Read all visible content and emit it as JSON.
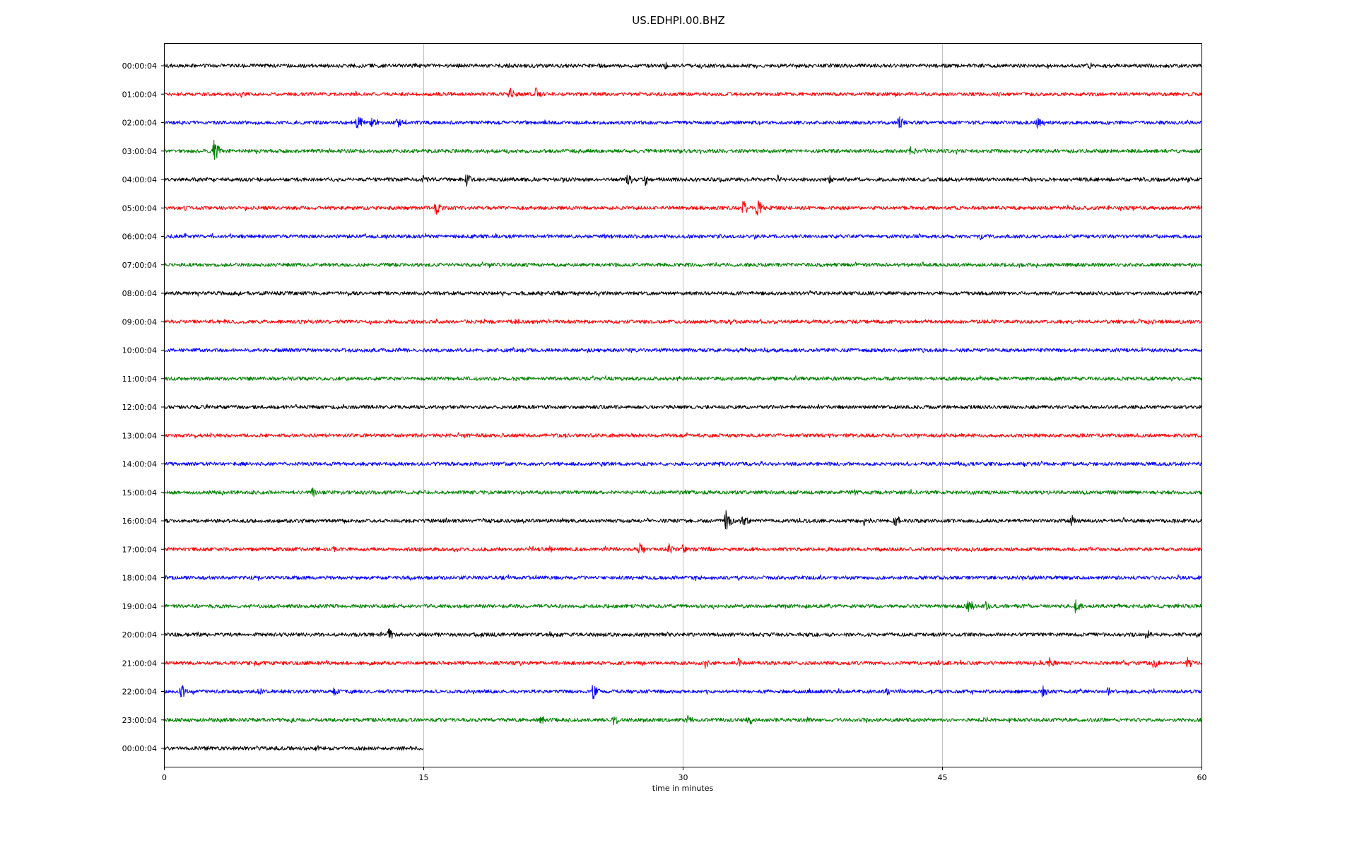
{
  "chart_data": {
    "type": "line",
    "title": "US.EDHPI.00.BHZ",
    "xlabel": "time in minutes",
    "ylabel": "",
    "xlim": [
      0,
      60
    ],
    "xticks": [
      0,
      15,
      30,
      45,
      60
    ],
    "grid": "vertical lines at x ticks",
    "line_colors": [
      "#000000",
      "#ff0000",
      "#0000ff",
      "#008000"
    ],
    "rows": [
      {
        "label": "00:00:04",
        "end_minute": 60,
        "events": [
          {
            "t": 29,
            "amp": 6
          },
          {
            "t": 35.5,
            "amp": 4
          },
          {
            "t": 53.5,
            "amp": 6
          }
        ]
      },
      {
        "label": "01:00:04",
        "end_minute": 60,
        "events": [
          {
            "t": 4.5,
            "amp": 6
          },
          {
            "t": 20,
            "amp": 12
          },
          {
            "t": 21.5,
            "amp": 11
          }
        ]
      },
      {
        "label": "02:00:04",
        "end_minute": 60,
        "events": [
          {
            "t": 11.2,
            "amp": 14
          },
          {
            "t": 12,
            "amp": 10
          },
          {
            "t": 13.5,
            "amp": 8
          },
          {
            "t": 42.5,
            "amp": 11
          },
          {
            "t": 50.5,
            "amp": 9
          }
        ]
      },
      {
        "label": "03:00:04",
        "end_minute": 60,
        "events": [
          {
            "t": 2.9,
            "amp": 17
          },
          {
            "t": 43.2,
            "amp": 9
          }
        ]
      },
      {
        "label": "04:00:04",
        "end_minute": 60,
        "events": [
          {
            "t": 15,
            "amp": 8
          },
          {
            "t": 17.5,
            "amp": 11
          },
          {
            "t": 26.8,
            "amp": 11
          },
          {
            "t": 27.8,
            "amp": 10
          },
          {
            "t": 35.5,
            "amp": 7
          },
          {
            "t": 38.5,
            "amp": 6
          }
        ]
      },
      {
        "label": "05:00:04",
        "end_minute": 60,
        "events": [
          {
            "t": 1.2,
            "amp": 5
          },
          {
            "t": 15.7,
            "amp": 12
          },
          {
            "t": 33.5,
            "amp": 12
          },
          {
            "t": 34.3,
            "amp": 14
          }
        ]
      },
      {
        "label": "06:00:04",
        "end_minute": 60,
        "events": [
          {
            "t": 47.2,
            "amp": 5
          }
        ]
      },
      {
        "label": "07:00:04",
        "end_minute": 60,
        "events": []
      },
      {
        "label": "08:00:04",
        "end_minute": 60,
        "events": [
          {
            "t": 30,
            "amp": 4
          }
        ]
      },
      {
        "label": "09:00:04",
        "end_minute": 60,
        "events": [
          {
            "t": 20.3,
            "amp": 8
          }
        ]
      },
      {
        "label": "10:00:04",
        "end_minute": 60,
        "events": []
      },
      {
        "label": "11:00:04",
        "end_minute": 60,
        "events": []
      },
      {
        "label": "12:00:04",
        "end_minute": 60,
        "events": [
          {
            "t": 56.5,
            "amp": 4
          }
        ]
      },
      {
        "label": "13:00:04",
        "end_minute": 60,
        "events": []
      },
      {
        "label": "14:00:04",
        "end_minute": 60,
        "events": []
      },
      {
        "label": "15:00:04",
        "end_minute": 60,
        "events": [
          {
            "t": 8.6,
            "amp": 8
          }
        ]
      },
      {
        "label": "16:00:04",
        "end_minute": 60,
        "events": [
          {
            "t": 32.5,
            "amp": 20
          },
          {
            "t": 33.5,
            "amp": 12
          },
          {
            "t": 40.5,
            "amp": 10
          },
          {
            "t": 42.3,
            "amp": 11
          },
          {
            "t": 52.5,
            "amp": 9
          },
          {
            "t": 55.5,
            "amp": 5
          }
        ]
      },
      {
        "label": "17:00:04",
        "end_minute": 60,
        "events": [
          {
            "t": 9.8,
            "amp": 5
          },
          {
            "t": 21.2,
            "amp": 7
          },
          {
            "t": 22.3,
            "amp": 6
          },
          {
            "t": 27.5,
            "amp": 12
          },
          {
            "t": 29.2,
            "amp": 9
          },
          {
            "t": 30,
            "amp": 7
          }
        ]
      },
      {
        "label": "18:00:04",
        "end_minute": 60,
        "events": [
          {
            "t": 27.6,
            "amp": 4
          },
          {
            "t": 31,
            "amp": 4
          }
        ]
      },
      {
        "label": "19:00:04",
        "end_minute": 60,
        "events": [
          {
            "t": 46.5,
            "amp": 14
          },
          {
            "t": 47.5,
            "amp": 8
          },
          {
            "t": 52.7,
            "amp": 11
          }
        ]
      },
      {
        "label": "20:00:04",
        "end_minute": 60,
        "events": [
          {
            "t": 13,
            "amp": 10
          },
          {
            "t": 56.8,
            "amp": 9
          }
        ]
      },
      {
        "label": "21:00:04",
        "end_minute": 60,
        "events": [
          {
            "t": 31.3,
            "amp": 8
          },
          {
            "t": 33.2,
            "amp": 9
          },
          {
            "t": 51.2,
            "amp": 9
          },
          {
            "t": 57.2,
            "amp": 11
          },
          {
            "t": 59.2,
            "amp": 10
          }
        ]
      },
      {
        "label": "22:00:04",
        "end_minute": 60,
        "events": [
          {
            "t": 1,
            "amp": 12
          },
          {
            "t": 5.5,
            "amp": 6
          },
          {
            "t": 9.8,
            "amp": 9
          },
          {
            "t": 24.8,
            "amp": 13
          },
          {
            "t": 41.8,
            "amp": 7
          },
          {
            "t": 50.8,
            "amp": 11
          },
          {
            "t": 54.6,
            "amp": 7
          }
        ]
      },
      {
        "label": "23:00:04",
        "end_minute": 60,
        "events": [
          {
            "t": 21.8,
            "amp": 8
          },
          {
            "t": 26,
            "amp": 10
          },
          {
            "t": 30.3,
            "amp": 8
          },
          {
            "t": 33.8,
            "amp": 9
          },
          {
            "t": 37.2,
            "amp": 5
          }
        ]
      },
      {
        "label": "00:00:04",
        "end_minute": 15,
        "events": [
          {
            "t": 8.8,
            "amp": 7
          }
        ]
      }
    ]
  }
}
